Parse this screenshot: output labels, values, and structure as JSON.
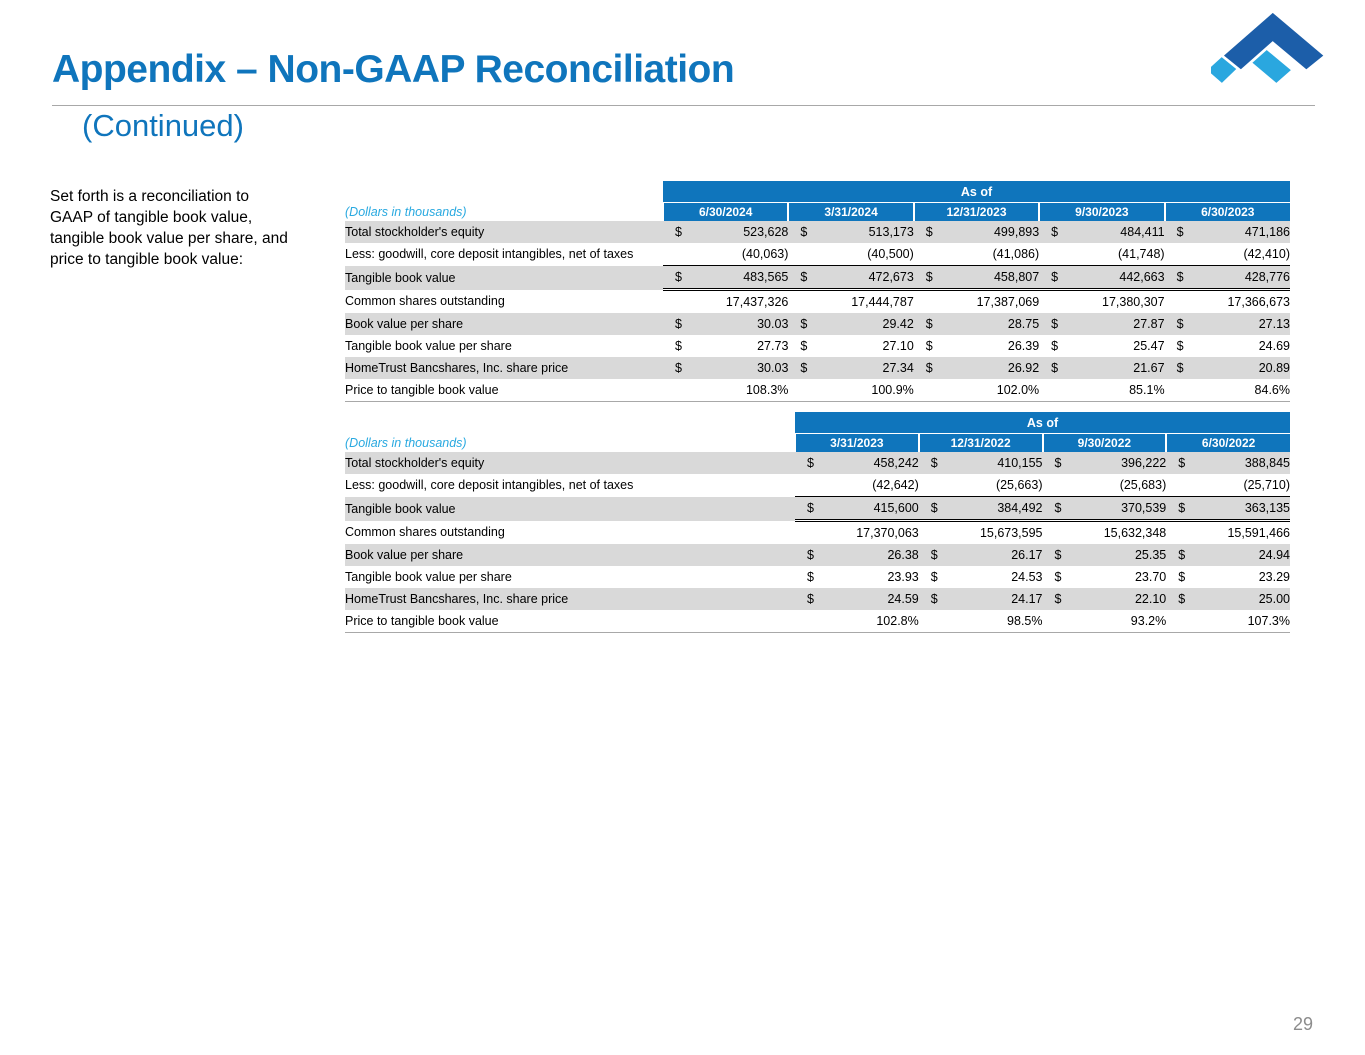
{
  "slide": {
    "title": "Appendix – Non-GAAP Reconciliation",
    "subtitle": "(Continued)",
    "intro": "Set forth is a reconciliation to GAAP of tangible book value, tangible book value per share, and price to tangible book value:",
    "page_number": "29"
  },
  "colors": {
    "accent_blue": "#0F75BC",
    "note_blue": "#29A9E0",
    "row_gray": "#D9D9D9",
    "logo_dark_blue": "#1C5EA9",
    "logo_light_blue": "#2AA7DF"
  },
  "tables": [
    {
      "as_of_label": "As of",
      "note": "(Dollars in thousands)",
      "columns": [
        "6/30/2024",
        "3/31/2024",
        "12/31/2023",
        "9/30/2023",
        "6/30/2023"
      ],
      "rows": [
        {
          "label": "Total stockholder's equity",
          "dollar": true,
          "shaded": true,
          "values": [
            "523,628",
            "513,173",
            "499,893",
            "484,411",
            "471,186"
          ]
        },
        {
          "label": "Less: goodwill, core deposit intangibles, net of taxes",
          "dollar": false,
          "underline": "single",
          "values": [
            "(40,063)",
            "(40,500)",
            "(41,086)",
            "(41,748)",
            "(42,410)"
          ]
        },
        {
          "label": "Tangible book value",
          "dollar": true,
          "shaded": true,
          "underline": "double",
          "values": [
            "483,565",
            "472,673",
            "458,807",
            "442,663",
            "428,776"
          ]
        },
        {
          "label": "Common shares outstanding",
          "dollar": false,
          "values": [
            "17,437,326",
            "17,444,787",
            "17,387,069",
            "17,380,307",
            "17,366,673"
          ]
        },
        {
          "label": "Book value per share",
          "dollar": true,
          "shaded": true,
          "values": [
            "30.03",
            "29.42",
            "28.75",
            "27.87",
            "27.13"
          ]
        },
        {
          "label": "Tangible book value per share",
          "dollar": true,
          "values": [
            "27.73",
            "27.10",
            "26.39",
            "25.47",
            "24.69"
          ]
        },
        {
          "label": "HomeTrust Bancshares, Inc. share price",
          "dollar": true,
          "shaded": true,
          "values": [
            "30.03",
            "27.34",
            "26.92",
            "21.67",
            "20.89"
          ]
        },
        {
          "label": "Price to tangible book value",
          "dollar": false,
          "values": [
            "108.3%",
            "100.9%",
            "102.0%",
            "85.1%",
            "84.6%"
          ]
        }
      ]
    },
    {
      "as_of_label": "As of",
      "note": "(Dollars in thousands)",
      "columns": [
        "3/31/2023",
        "12/31/2022",
        "9/30/2022",
        "6/30/2022"
      ],
      "rows": [
        {
          "label": "Total stockholder's equity",
          "dollar": true,
          "shaded": true,
          "values": [
            "458,242",
            "410,155",
            "396,222",
            "388,845"
          ]
        },
        {
          "label": "Less: goodwill, core deposit intangibles, net of taxes",
          "dollar": false,
          "underline": "single",
          "values": [
            "(42,642)",
            "(25,663)",
            "(25,683)",
            "(25,710)"
          ]
        },
        {
          "label": "Tangible book value",
          "dollar": true,
          "shaded": true,
          "underline": "double",
          "values": [
            "415,600",
            "384,492",
            "370,539",
            "363,135"
          ]
        },
        {
          "label": "Common shares outstanding",
          "dollar": false,
          "values": [
            "17,370,063",
            "15,673,595",
            "15,632,348",
            "15,591,466"
          ]
        },
        {
          "label": "Book value per share",
          "dollar": true,
          "shaded": true,
          "values": [
            "26.38",
            "26.17",
            "25.35",
            "24.94"
          ]
        },
        {
          "label": "Tangible book value per share",
          "dollar": true,
          "dollar_note": "",
          "dollar2": "",
          "dollar_flag": "",
          "values": [
            "23.93",
            "24.53",
            "23.70",
            "23.29"
          ]
        },
        {
          "label": "HomeTrust Bancshares, Inc. share price",
          "dollar": true,
          "shaded": true,
          "values": [
            "24.59",
            "24.17",
            "22.10",
            "25.00"
          ]
        },
        {
          "label": "Price to tangible book value",
          "dollar": false,
          "values": [
            "102.8%",
            "98.5%",
            "93.2%",
            "107.3%"
          ]
        }
      ]
    }
  ]
}
